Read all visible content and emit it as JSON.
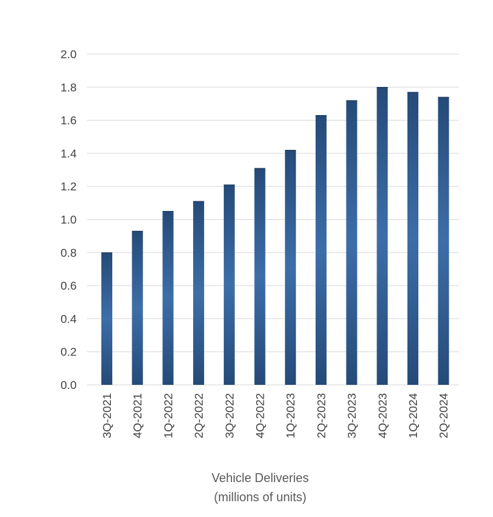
{
  "chart_data": {
    "type": "bar",
    "categories": [
      "3Q-2021",
      "4Q-2021",
      "1Q-2022",
      "2Q-2022",
      "3Q-2022",
      "4Q-2022",
      "1Q-2023",
      "2Q-2023",
      "3Q-2023",
      "4Q-2023",
      "1Q-2024",
      "2Q-2024"
    ],
    "values": [
      0.8,
      0.93,
      1.05,
      1.11,
      1.21,
      1.31,
      1.42,
      1.63,
      1.72,
      1.8,
      1.77,
      1.74
    ],
    "title": "",
    "xlabel_line1": "Vehicle Deliveries",
    "xlabel_line2": "(millions of units)",
    "ylabel": "",
    "ylim": [
      0,
      2.0
    ],
    "yticks": [
      "0.0",
      "0.2",
      "0.4",
      "0.6",
      "0.8",
      "1.0",
      "1.2",
      "1.4",
      "1.6",
      "1.8",
      "2.0"
    ],
    "grid": true,
    "legend": "none",
    "bar_color": "#2f5a8f",
    "bar_color_light": "#3d6ea8",
    "bar_color_dark": "#254a78",
    "grid_color": "#d9d9d9"
  }
}
